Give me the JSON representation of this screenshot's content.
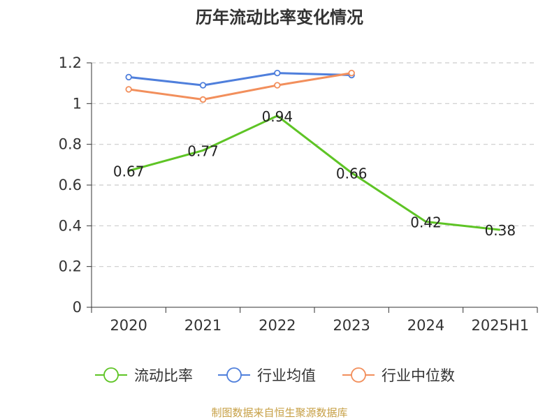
{
  "title": "历年流动比率变化情况",
  "source": "制图数据来自恒生聚源数据库",
  "chart_data": {
    "type": "line",
    "title": "历年流动比率变化情况",
    "categories": [
      "2020",
      "2021",
      "2022",
      "2023",
      "2024",
      "2025H1"
    ],
    "ylim": [
      0,
      1.2
    ],
    "yticks": [
      0,
      0.2,
      0.4,
      0.6,
      0.8,
      1,
      1.2
    ],
    "ytick_labels": [
      "0",
      "0.2",
      "0.4",
      "0.6",
      "0.8",
      "1",
      "1.2"
    ],
    "grid": true,
    "legend_position": "bottom",
    "series": [
      {
        "name": "流动比率",
        "color": "#5ec425",
        "values": [
          0.67,
          0.77,
          0.94,
          0.66,
          0.42,
          0.38
        ],
        "labels": [
          "0.67",
          "0.77",
          "0.94",
          "0.66",
          "0.42",
          "0.38"
        ],
        "show_markers": false,
        "show_labels": true
      },
      {
        "name": "行业均值",
        "color": "#4f7fdc",
        "values": [
          1.13,
          1.09,
          1.15,
          1.14,
          null,
          null
        ],
        "show_markers": true,
        "show_labels": false
      },
      {
        "name": "行业中位数",
        "color": "#f28f5c",
        "values": [
          1.07,
          1.02,
          1.09,
          1.15,
          null,
          null
        ],
        "show_markers": true,
        "show_labels": false
      }
    ]
  }
}
